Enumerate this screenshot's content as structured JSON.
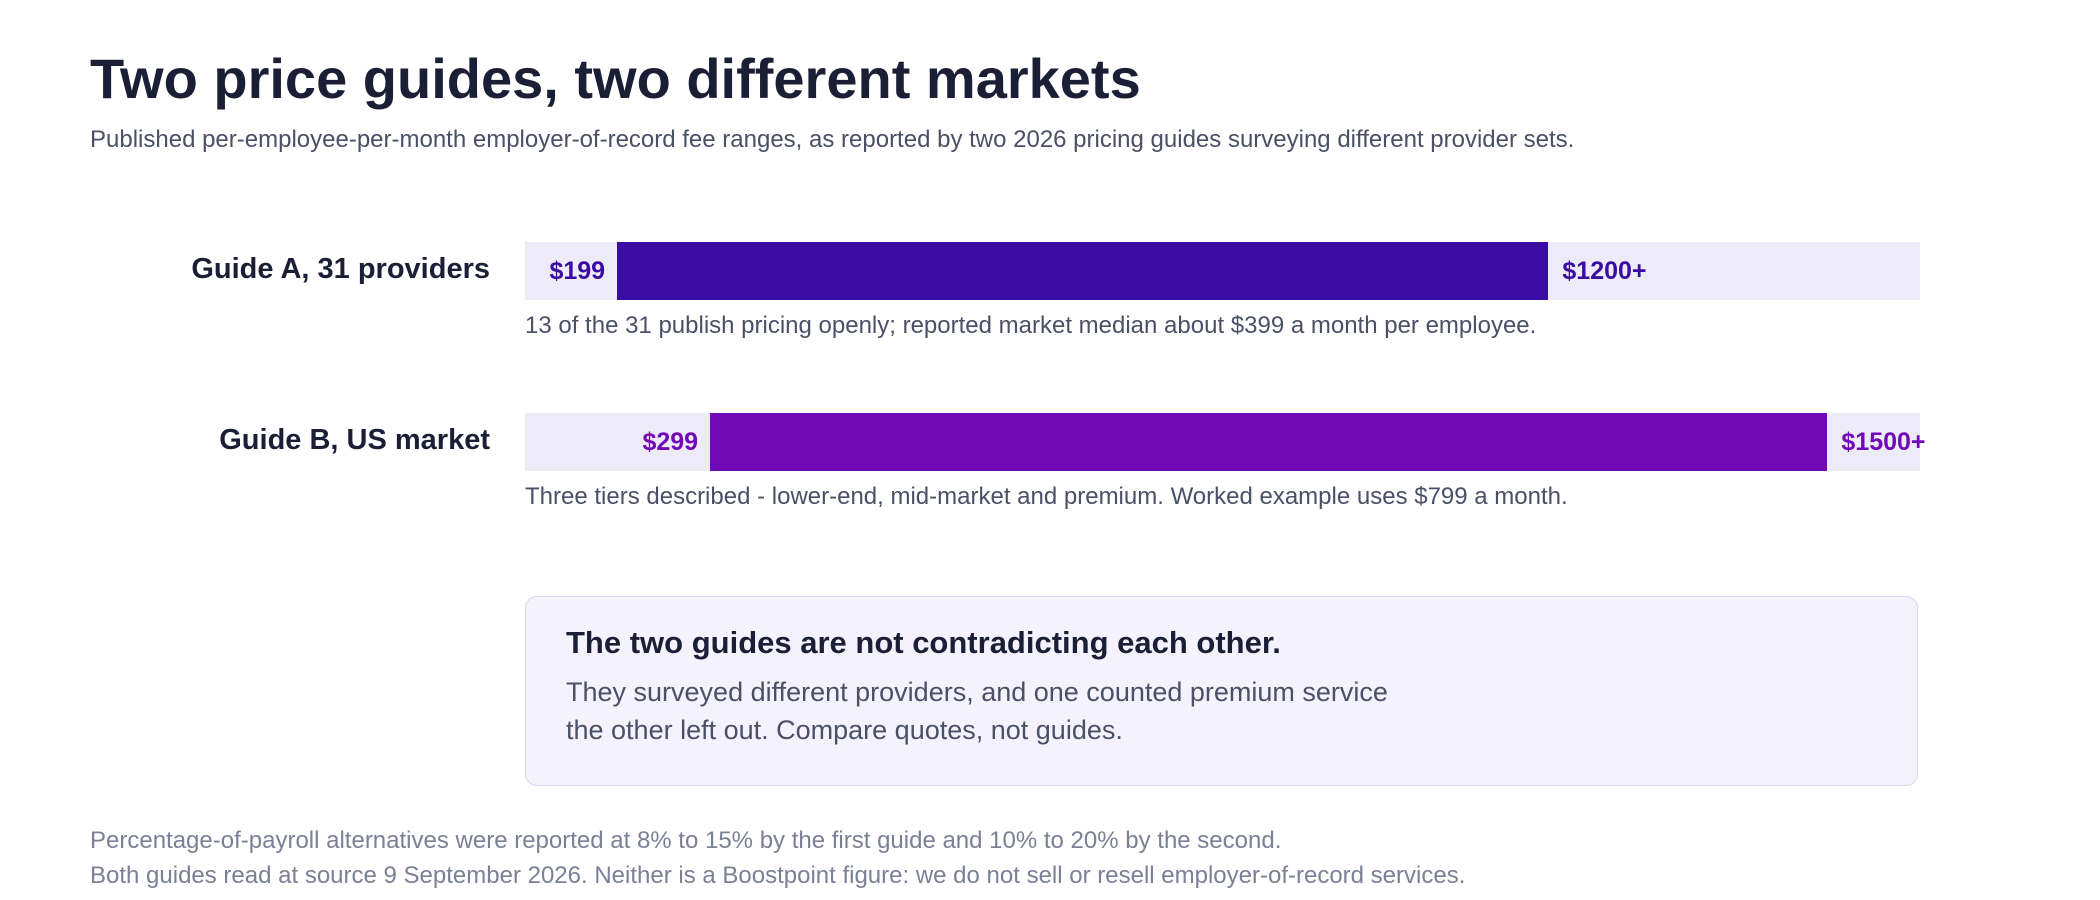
{
  "header": {
    "title": "Two price guides, two different markets",
    "subtitle": "Published per-employee-per-month employer-of-record fee ranges, as reported by two 2026 pricing guides surveying different provider sets."
  },
  "chart_data": {
    "type": "bar",
    "subtype": "range",
    "x_range": [
      100,
      1600
    ],
    "series": [
      {
        "name": "Guide A, 31 providers",
        "low": 199,
        "high": 1200,
        "low_label": "$199",
        "high_label": "$1200+",
        "note": "13 of the 31 publish pricing openly; reported market median about $399 a month per employee.",
        "color": "#3a0ca3",
        "label_color": "#3a0ca3"
      },
      {
        "name": "Guide B, US market",
        "low": 299,
        "high": 1500,
        "low_label": "$299",
        "high_label": "$1500+",
        "note": "Three tiers described - lower-end, mid-market and premium. Worked example uses $799 a month.",
        "color": "#7209b7",
        "label_color": "#7209b7"
      }
    ],
    "track_color": "#eeebf8"
  },
  "callout": {
    "heading": "The two guides are not contradicting each other.",
    "body_line1": "They surveyed different providers, and one counted premium service",
    "body_line2": "the other left out. Compare quotes, not guides."
  },
  "footer": {
    "line1": "Percentage-of-payroll alternatives were reported at 8% to 15% by the first guide and 10% to 20% by the second.",
    "line2": "Both guides read at source 9 September 2026. Neither is a Boostpoint figure: we do not sell or resell employer-of-record services."
  }
}
